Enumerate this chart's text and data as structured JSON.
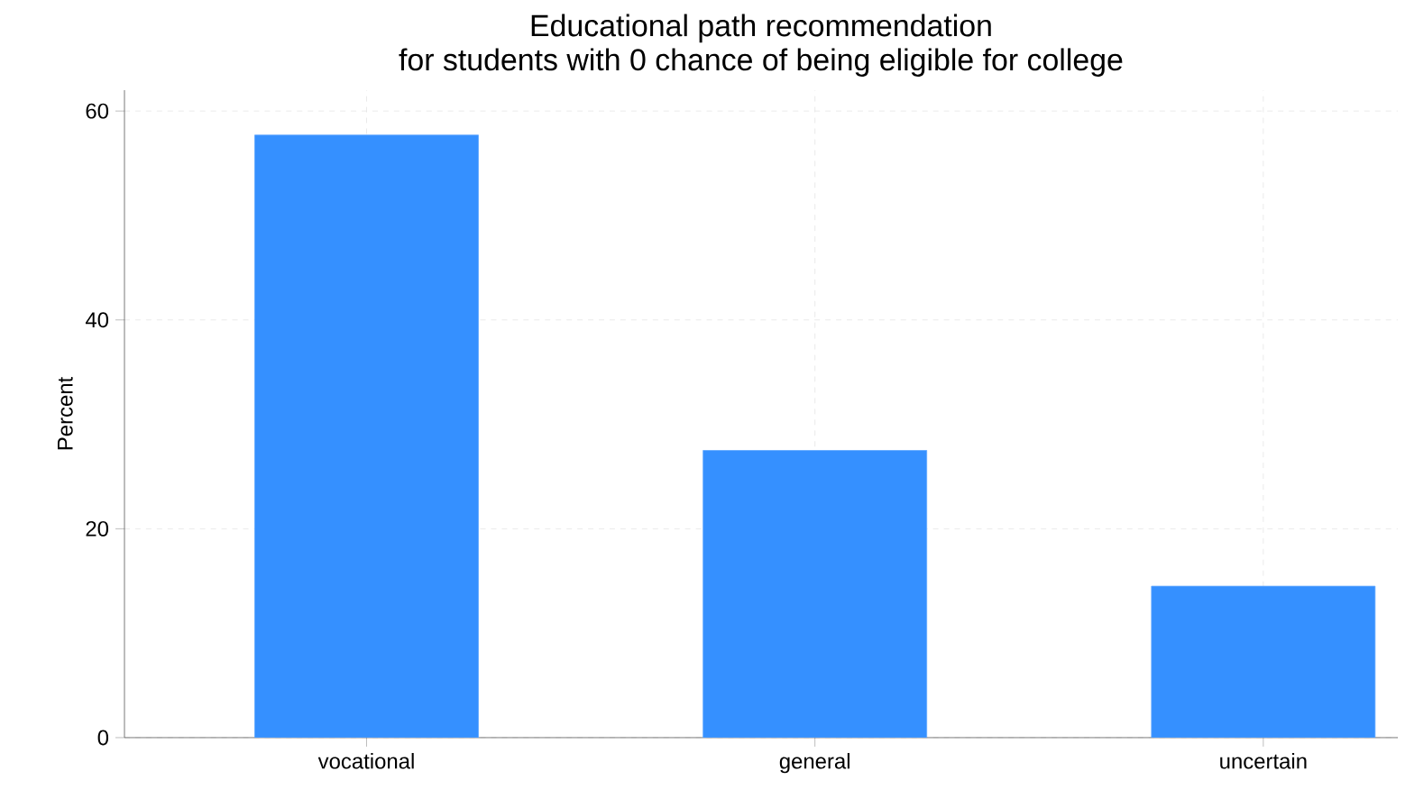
{
  "chart_data": {
    "type": "bar",
    "title": "Educational path recommendation",
    "subtitle": "for students with 0 chance of being eligible for college",
    "ylabel": "Percent",
    "categories": [
      "vocational",
      "general",
      "uncertain"
    ],
    "values": [
      57.7,
      27.5,
      14.5
    ],
    "color": "#3590ff",
    "ylim": [
      0,
      62
    ],
    "yticks": [
      0,
      20,
      40,
      60
    ],
    "grid": true
  }
}
